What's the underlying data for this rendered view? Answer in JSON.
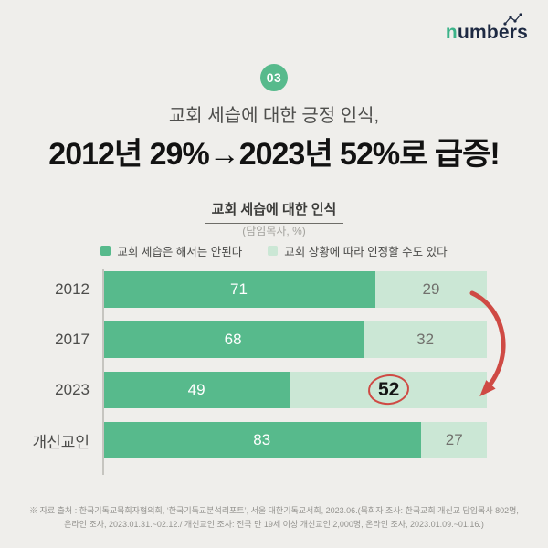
{
  "page": {
    "background": "#efeeeb"
  },
  "logo": {
    "prefix": "n",
    "rest": "umbers",
    "prefix_color": "#3cb389",
    "text_color": "#1d2942"
  },
  "badge": {
    "number": "03",
    "color": "#57ba8c"
  },
  "intro": {
    "kicker": "교회 세습에 대한 긍정 인식,",
    "headline": "2012년 29%→2023년 52%로 급증!"
  },
  "chart_data": {
    "type": "bar",
    "orientation": "horizontal",
    "stacked": true,
    "title": "교회 세습에 대한 인식",
    "subtitle": "(담임목사, %)",
    "categories": [
      "2012",
      "2017",
      "2023",
      "개신교인"
    ],
    "series": [
      {
        "name": "교회 세습은 해서는 안된다",
        "color": "#57ba8c",
        "values": [
          71,
          68,
          49,
          83
        ]
      },
      {
        "name": "교회 상황에 따라 인정할 수도 있다",
        "color": "#cbe7d5",
        "values": [
          29,
          32,
          52,
          27
        ]
      }
    ],
    "value_range": [
      0,
      100
    ],
    "highlight": {
      "row": 2,
      "series": 1,
      "style": "red-circle"
    },
    "annotation_arrow": {
      "from_category": "2012",
      "to_category": "2023",
      "color": "#cf4a44"
    },
    "layout": {
      "legend_position": "top",
      "axis_line": true,
      "extra_gap_before_row": 3,
      "grid": false
    }
  },
  "footnote": {
    "line1": "※ 자료 출처 : 한국기독교목회자협의회, ‘한국기독교분석리포트’, 서울 대한기독교서회, 2023.06.(목회자 조사: 한국교회 개신교 담임목사 802명,",
    "line2": "온라인 조사, 2023.01.31.~02.12./ 개신교인 조사: 전국 만 19세 이상 개신교인 2,000명, 온라인 조사, 2023.01.09.~01.16.)"
  }
}
